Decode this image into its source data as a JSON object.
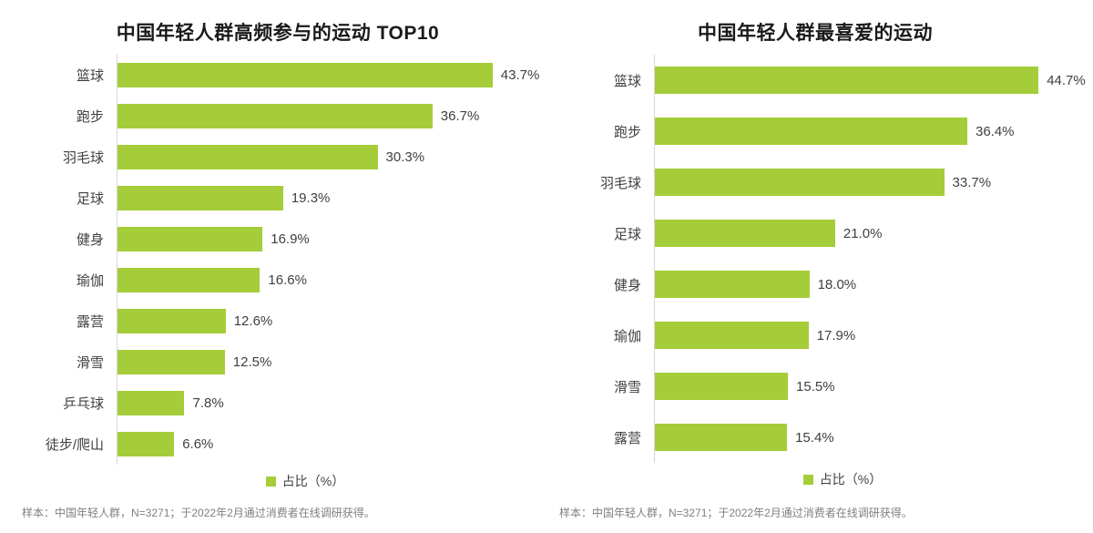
{
  "accent_color": "#a5cd39",
  "chart_data": [
    {
      "type": "bar",
      "orientation": "horizontal",
      "title": "中国年轻人群高频参与的运动 TOP10",
      "legend": "占比（%）",
      "footnote": "样本：中国年轻人群，N=3271；于2022年2月通过消费者在线调研获得。",
      "categories": [
        "篮球",
        "跑步",
        "羽毛球",
        "足球",
        "健身",
        "瑜伽",
        "露营",
        "滑雪",
        "乒乓球",
        "徒步/爬山"
      ],
      "values": [
        43.7,
        36.7,
        30.3,
        19.3,
        16.9,
        16.6,
        12.6,
        12.5,
        7.8,
        6.6
      ],
      "value_labels": [
        "43.7%",
        "36.7%",
        "30.3%",
        "19.3%",
        "16.9%",
        "16.6%",
        "12.6%",
        "12.5%",
        "7.8%",
        "6.6%"
      ],
      "xlabel": "",
      "ylabel": "",
      "xlim": [
        0,
        48.5
      ],
      "grid": false,
      "legend_position": "bottom",
      "bar_color": "#a5cd39"
    },
    {
      "type": "bar",
      "orientation": "horizontal",
      "title": "中国年轻人群最喜爱的运动",
      "legend": "占比（%）",
      "footnote": "样本：中国年轻人群，N=3271；于2022年2月通过消费者在线调研获得。",
      "categories": [
        "篮球",
        "跑步",
        "羽毛球",
        "足球",
        "健身",
        "瑜伽",
        "滑雪",
        "露营"
      ],
      "values": [
        44.7,
        36.4,
        33.7,
        21.0,
        18.0,
        17.9,
        15.5,
        15.4
      ],
      "value_labels": [
        "44.7%",
        "36.4%",
        "33.7%",
        "21.0%",
        "18.0%",
        "17.9%",
        "15.5%",
        "15.4%"
      ],
      "xlabel": "",
      "ylabel": "",
      "xlim": [
        0,
        48.5
      ],
      "grid": false,
      "legend_position": "bottom",
      "bar_color": "#a5cd39"
    }
  ]
}
